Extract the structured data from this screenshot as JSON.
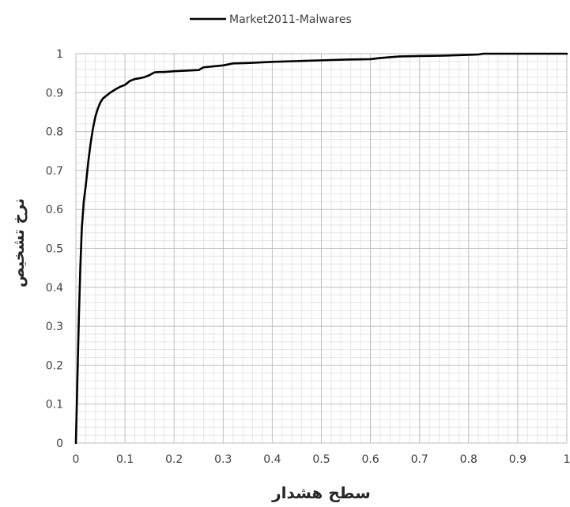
{
  "chart_data": {
    "type": "line",
    "title": "",
    "xlabel": "سطح هشدار",
    "ylabel": "نرخ تشخیص",
    "xlim": [
      0,
      1
    ],
    "ylim": [
      0,
      1
    ],
    "x_ticks": [
      0,
      0.1,
      0.2,
      0.3,
      0.4,
      0.5,
      0.6,
      0.7,
      0.8,
      0.9,
      1
    ],
    "x_tick_labels": [
      "0",
      "0.1",
      "0.2",
      "0.3",
      "0.4",
      "0.5",
      "0.6",
      "0.7",
      "0.8",
      "0.9",
      "1"
    ],
    "y_ticks": [
      0,
      0.1,
      0.2,
      0.3,
      0.4,
      0.5,
      0.6,
      0.7,
      0.8,
      0.9,
      1
    ],
    "y_tick_labels": [
      "0",
      "0.1",
      "0.2",
      "0.3",
      "0.4",
      "0.5",
      "0.6",
      "0.7",
      "0.8",
      "0.9",
      "1"
    ],
    "grid": true,
    "minor_grid": true,
    "legend_position": "top",
    "series": [
      {
        "name": "Market2011-Malwares",
        "color": "#000000",
        "x": [
          0,
          0.003,
          0.006,
          0.009,
          0.012,
          0.016,
          0.02,
          0.025,
          0.03,
          0.035,
          0.04,
          0.045,
          0.05,
          0.055,
          0.06,
          0.065,
          0.07,
          0.08,
          0.09,
          0.1,
          0.11,
          0.12,
          0.13,
          0.14,
          0.15,
          0.16,
          0.17,
          0.18,
          0.19,
          0.2,
          0.25,
          0.26,
          0.3,
          0.32,
          0.35,
          0.4,
          0.45,
          0.5,
          0.55,
          0.6,
          0.62,
          0.64,
          0.66,
          0.7,
          0.75,
          0.8,
          0.82,
          0.83,
          0.9,
          1
        ],
        "y": [
          0,
          0.16,
          0.32,
          0.45,
          0.55,
          0.62,
          0.66,
          0.72,
          0.77,
          0.81,
          0.84,
          0.86,
          0.875,
          0.885,
          0.89,
          0.895,
          0.9,
          0.908,
          0.915,
          0.92,
          0.93,
          0.935,
          0.937,
          0.94,
          0.945,
          0.952,
          0.953,
          0.953,
          0.954,
          0.955,
          0.958,
          0.965,
          0.97,
          0.975,
          0.976,
          0.979,
          0.981,
          0.983,
          0.985,
          0.986,
          0.989,
          0.991,
          0.993,
          0.994,
          0.995,
          0.997,
          0.998,
          1.0,
          1.0,
          1.0
        ]
      }
    ]
  }
}
